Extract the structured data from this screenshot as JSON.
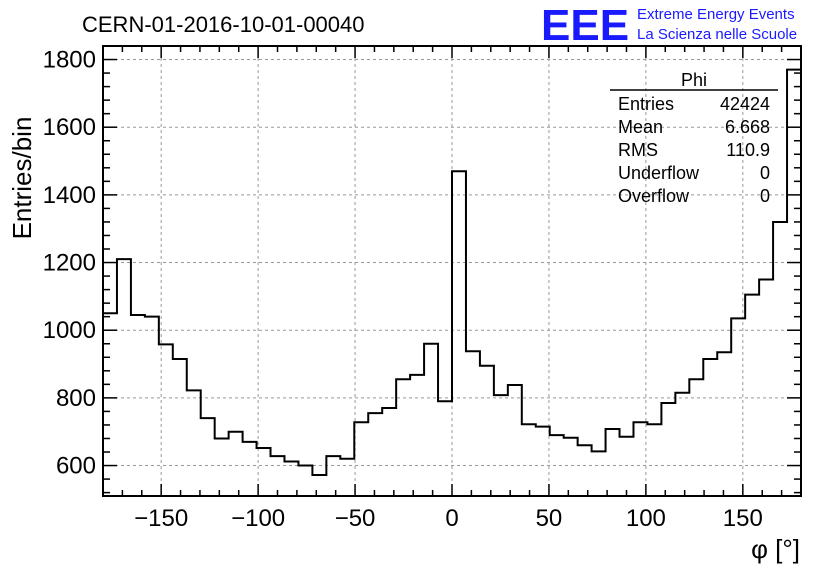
{
  "title": "CERN-01-2016-10-01-00040",
  "logo": {
    "mark": "EEE",
    "line1": "Extreme Energy Events",
    "line2": "La Scienza nelle Scuole",
    "color": "#1a1aff"
  },
  "stats": {
    "name": "Phi",
    "rows": [
      {
        "label": "Entries",
        "value": "42424"
      },
      {
        "label": "Mean",
        "value": "6.668"
      },
      {
        "label": "RMS",
        "value": "110.9"
      },
      {
        "label": "Underflow",
        "value": "0"
      },
      {
        "label": "Overflow",
        "value": "0"
      }
    ]
  },
  "chart_data": {
    "type": "histogram",
    "title": "CERN-01-2016-10-01-00040",
    "xlabel": "φ [°]",
    "ylabel": "Entries/bin",
    "xlim": [
      -180,
      180
    ],
    "ylim": [
      510,
      1840
    ],
    "grid": true,
    "bin_width": 7.2,
    "bin_edges_start": -180,
    "values": [
      1050,
      1210,
      1045,
      1040,
      958,
      915,
      822,
      740,
      680,
      700,
      670,
      652,
      628,
      612,
      600,
      572,
      628,
      620,
      728,
      755,
      770,
      855,
      868,
      960,
      790,
      1470,
      938,
      895,
      808,
      838,
      722,
      715,
      690,
      682,
      660,
      642,
      708,
      685,
      728,
      722,
      785,
      815,
      855,
      915,
      935,
      1035,
      1105,
      1150,
      1320,
      1770
    ],
    "x_ticks": [
      -150,
      -100,
      -50,
      0,
      50,
      100,
      150
    ],
    "x_tick_labels": [
      "−150",
      "−100",
      "−50",
      "0",
      "50",
      "100",
      "150"
    ],
    "y_ticks": [
      600,
      800,
      1000,
      1200,
      1400,
      1600,
      1800
    ],
    "y_tick_labels": [
      "600",
      "800",
      "1000",
      "1200",
      "1400",
      "1600",
      "1800"
    ],
    "line_color": "#000000",
    "grid_color": "#999999"
  }
}
